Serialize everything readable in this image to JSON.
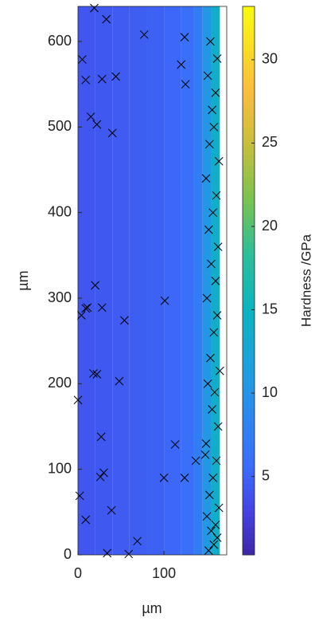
{
  "chart_data": {
    "type": "heatmap",
    "x_label": "µm",
    "y_label": "µm",
    "colorbar_label": "Hardness /GPa",
    "xlim": [
      0,
      173
    ],
    "ylim": [
      0,
      641
    ],
    "xticks": [
      0,
      100
    ],
    "yticks": [
      0,
      100,
      200,
      300,
      400,
      500,
      600
    ],
    "clim": [
      0.3,
      33.2
    ],
    "cticks": [
      5,
      10,
      15,
      20,
      25,
      30
    ],
    "x_edges": [
      0,
      20,
      40,
      60,
      80,
      100,
      120,
      135,
      145,
      155,
      165,
      173
    ],
    "values": [
      4.2,
      4.3,
      4.5,
      4.7,
      4.9,
      5.3,
      6.0,
      7.5,
      10.5,
      14.0,
      null
    ],
    "marker_color": "#000000",
    "markers": {
      "x": [
        5,
        9,
        28,
        33,
        19,
        44,
        15,
        22,
        40,
        77,
        124,
        120,
        125,
        20,
        11,
        28,
        9,
        4,
        54,
        101,
        18,
        48,
        0,
        27,
        30,
        26,
        113,
        100,
        124,
        39,
        9,
        2,
        69,
        59,
        34,
        22,
        137,
        148,
        152,
        158,
        162,
        155,
        160,
        150,
        164,
        153,
        157,
        161,
        149,
        163,
        156,
        159,
        151,
        165,
        154,
        158,
        162,
        150,
        160,
        155,
        163,
        152,
        157,
        161,
        149,
        164,
        153,
        158,
        156,
        160,
        151,
        162,
        154
      ],
      "y": [
        579,
        555,
        556,
        626,
        639,
        559,
        512,
        503,
        493,
        608,
        605,
        573,
        550,
        315,
        289,
        289,
        288,
        280,
        274,
        297,
        212,
        203,
        181,
        138,
        96,
        91,
        129,
        90,
        90,
        52,
        41,
        69,
        16,
        1,
        2,
        211,
        110,
        117,
        5,
        12,
        20,
        28,
        35,
        45,
        55,
        70,
        90,
        110,
        130,
        150,
        170,
        190,
        200,
        215,
        230,
        260,
        280,
        300,
        320,
        340,
        360,
        380,
        400,
        420,
        440,
        460,
        480,
        500,
        520,
        540,
        560,
        580,
        600
      ]
    }
  }
}
